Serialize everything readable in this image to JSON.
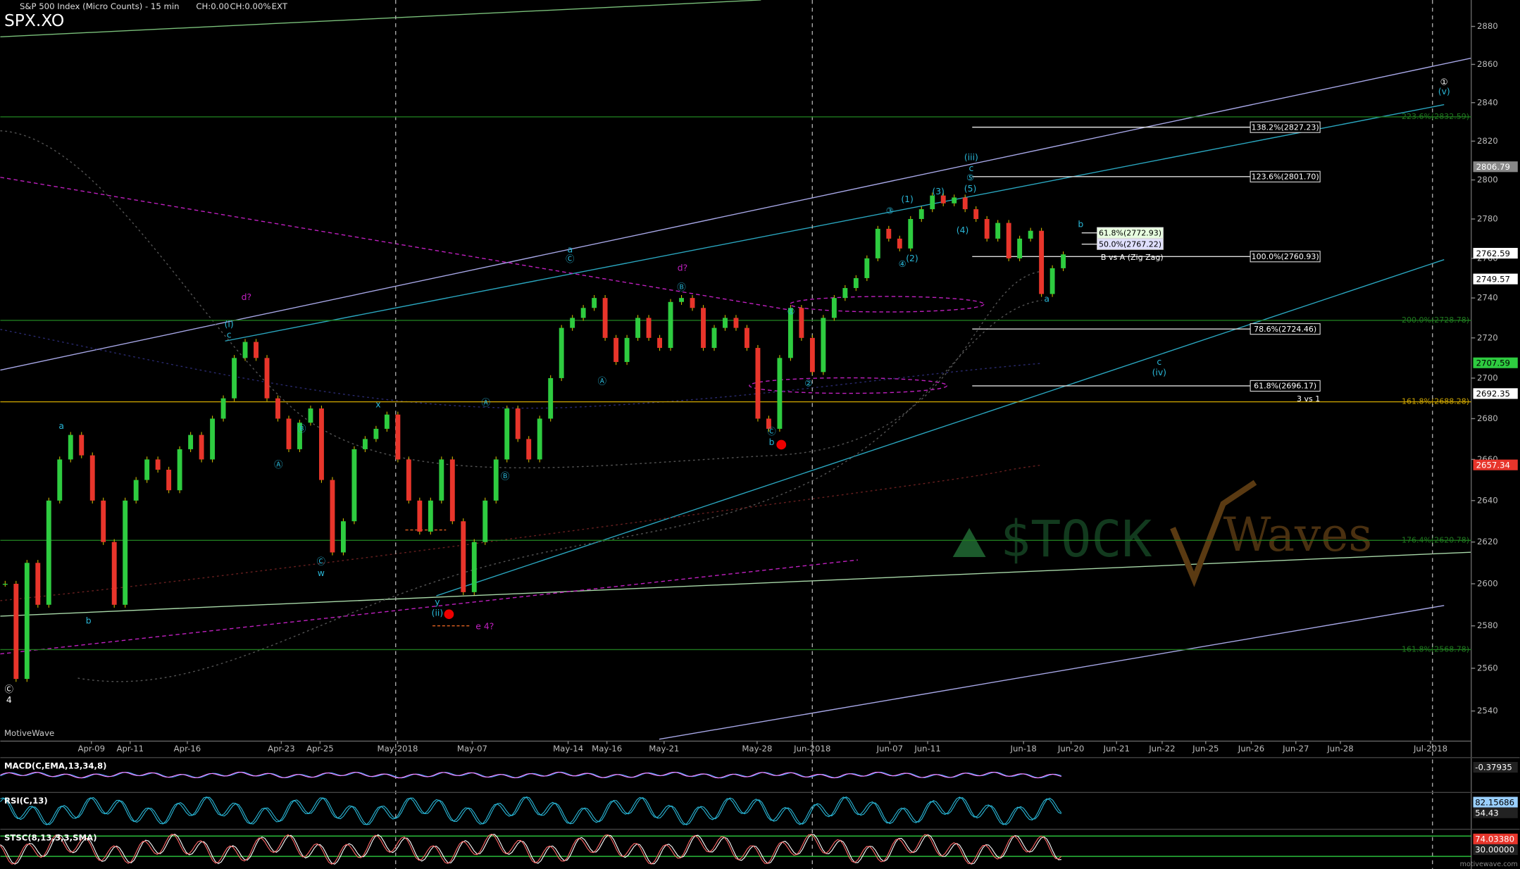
{
  "header": {
    "title": "S&P 500 Index (Micro Counts) - 15 min",
    "change": "CH:0.00",
    "change_pct": "CH:0.00%",
    "session": "EXT",
    "symbol": "SPX.XO",
    "brand": "MotiveWave",
    "footer": "motivewave.com"
  },
  "watermark": {
    "left": "$TOCK",
    "right": "Waves"
  },
  "chart_data": {
    "type": "candlestick",
    "log_scale": true,
    "ylim": [
      2526,
      2894
    ],
    "yticks": [
      2540,
      2560,
      2580,
      2600,
      2620,
      2640,
      2660,
      2680,
      2700,
      2720,
      2740,
      2760,
      2780,
      2800,
      2820,
      2840,
      2860,
      2880
    ],
    "x_labels": [
      "Apr-09",
      "Apr-11",
      "Apr-16",
      "Apr-23",
      "Apr-25",
      "May-2018",
      "May-07",
      "May-14",
      "May-16",
      "May-21",
      "May-28",
      "Jun-2018",
      "Jun-07",
      "Jun-11",
      "Jun-18",
      "Jun-20",
      "Jun-21",
      "Jun-22",
      "Jun-25",
      "Jun-26",
      "Jun-27",
      "Jun-28",
      "Jul-2018"
    ],
    "series": [
      {
        "name": "SPX.XO",
        "up_color": "#2ecc40",
        "down_color": "#e8352b",
        "values": [
          2600,
          2555,
          2610,
          2590,
          2640,
          2660,
          2672,
          2662,
          2640,
          2620,
          2590,
          2640,
          2650,
          2660,
          2655,
          2645,
          2665,
          2672,
          2660,
          2680,
          2690,
          2710,
          2718,
          2710,
          2690,
          2680,
          2665,
          2678,
          2685,
          2650,
          2615,
          2630,
          2665,
          2670,
          2675,
          2682,
          2660,
          2640,
          2625,
          2640,
          2660,
          2630,
          2596,
          2620,
          2640,
          2660,
          2685,
          2670,
          2660,
          2680,
          2700,
          2725,
          2730,
          2735,
          2740,
          2720,
          2708,
          2720,
          2730,
          2720,
          2715,
          2738,
          2740,
          2735,
          2715,
          2725,
          2730,
          2725,
          2715,
          2680,
          2675,
          2710,
          2735,
          2720,
          2703,
          2730,
          2740,
          2745,
          2750,
          2760,
          2775,
          2770,
          2765,
          2780,
          2785,
          2792,
          2788,
          2791,
          2785,
          2780,
          2770,
          2778,
          2760,
          2770,
          2774,
          2742,
          2755,
          2762
        ]
      }
    ],
    "fib_levels": [
      {
        "label": "138.2%(2827.23)",
        "value": 2827.23
      },
      {
        "label": "123.6%(2801.70)",
        "value": 2801.7
      },
      {
        "label": "61.8%(2772.93)",
        "value": 2772.93
      },
      {
        "label": "50.0%(2767.22)",
        "value": 2767.22
      },
      {
        "label": "100.0%(2760.93)",
        "value": 2760.93
      },
      {
        "label": "78.6%(2724.46)",
        "value": 2724.46
      },
      {
        "label": "61.8%(2696.17)",
        "value": 2696.17
      }
    ],
    "ext_levels": [
      {
        "label": "223.6%(2832.59)",
        "value": 2832.59,
        "color": "#1f7a1f"
      },
      {
        "label": "200.0%(2728.78)",
        "value": 2728.78,
        "color": "#1f7a1f"
      },
      {
        "label": "161.8%(2688.28)",
        "value": 2688.28,
        "color": "#c8a000"
      },
      {
        "label": "176.4%(2620.78)",
        "value": 2620.78,
        "color": "#1f7a1f"
      },
      {
        "label": "161.8%(2568.78)",
        "value": 2568.78,
        "color": "#1f7a1f"
      }
    ],
    "price_tags": [
      {
        "value": 2806.79,
        "color": "#888888"
      },
      {
        "value": 2762.59,
        "color": "#ffffff"
      },
      {
        "value": 2749.57,
        "color": "#ffffff"
      },
      {
        "value": 2707.59,
        "color": "#2ecc40"
      },
      {
        "value": 2692.35,
        "color": "#ffffff"
      },
      {
        "value": 2657.34,
        "color": "#e8352b"
      }
    ],
    "wave_labels": [
      {
        "text": "(i)",
        "color": "#29b6d6"
      },
      {
        "text": "c",
        "color": "#29b6d6"
      },
      {
        "text": "d?",
        "color": "#c020c0"
      },
      {
        "text": "a",
        "color": "#29b6d6"
      },
      {
        "text": "b",
        "color": "#29b6d6"
      },
      {
        "text": "Ⓒ",
        "color": "#ffffff"
      },
      {
        "text": "4",
        "color": "#ffffff"
      },
      {
        "text": "Ⓑ",
        "color": "#29b6d6"
      },
      {
        "text": "Ⓐ",
        "color": "#29b6d6"
      },
      {
        "text": "Ⓒ",
        "color": "#29b6d6"
      },
      {
        "text": "w",
        "color": "#29b6d6"
      },
      {
        "text": "x",
        "color": "#29b6d6"
      },
      {
        "text": "y",
        "color": "#29b6d6"
      },
      {
        "text": "(ii)",
        "color": "#29b6d6"
      },
      {
        "text": "e 4?",
        "color": "#c020c0"
      },
      {
        "text": "Ⓐ",
        "color": "#29b6d6"
      },
      {
        "text": "Ⓑ",
        "color": "#29b6d6"
      },
      {
        "text": "a",
        "color": "#29b6d6"
      },
      {
        "text": "Ⓒ",
        "color": "#29b6d6"
      },
      {
        "text": "Ⓐ",
        "color": "#29b6d6"
      },
      {
        "text": "d?",
        "color": "#c020c0"
      },
      {
        "text": "Ⓑ",
        "color": "#29b6d6"
      },
      {
        "text": "①",
        "color": "#29b6d6"
      },
      {
        "text": "②",
        "color": "#29b6d6"
      },
      {
        "text": "Ⓒ",
        "color": "#29b6d6"
      },
      {
        "text": "b",
        "color": "#29b6d6"
      },
      {
        "text": "③",
        "color": "#29b6d6"
      },
      {
        "text": "(1)",
        "color": "#29b6d6"
      },
      {
        "text": "(2)",
        "color": "#29b6d6"
      },
      {
        "text": "④",
        "color": "#29b6d6"
      },
      {
        "text": "(3)",
        "color": "#29b6d6"
      },
      {
        "text": "(4)",
        "color": "#29b6d6"
      },
      {
        "text": "(5)",
        "color": "#29b6d6"
      },
      {
        "text": "⑤",
        "color": "#29b6d6"
      },
      {
        "text": "c",
        "color": "#29b6d6"
      },
      {
        "text": "(iii)",
        "color": "#29b6d6"
      },
      {
        "text": "b",
        "color": "#29b6d6"
      },
      {
        "text": "a",
        "color": "#29b6d6"
      },
      {
        "text": "c",
        "color": "#29b6d6"
      },
      {
        "text": "(iv)",
        "color": "#29b6d6"
      },
      {
        "text": "①",
        "color": "#ffffff"
      },
      {
        "text": "(v)",
        "color": "#29b6d6"
      },
      {
        "text": "B vs A (Zig Zag)",
        "color": "#ffffff"
      },
      {
        "text": "3 vs 1",
        "color": "#ffffff"
      }
    ],
    "indicators": [
      {
        "name": "MACD(C,EMA,13,34,8)",
        "readings": [
          "-0.37935"
        ]
      },
      {
        "name": "RSI(C,13)",
        "readings": [
          "82.15686",
          "54.43"
        ]
      },
      {
        "name": "STSC(8,13,3,3,SMA)",
        "readings": [
          "74.03380",
          "30.00000"
        ]
      }
    ]
  }
}
